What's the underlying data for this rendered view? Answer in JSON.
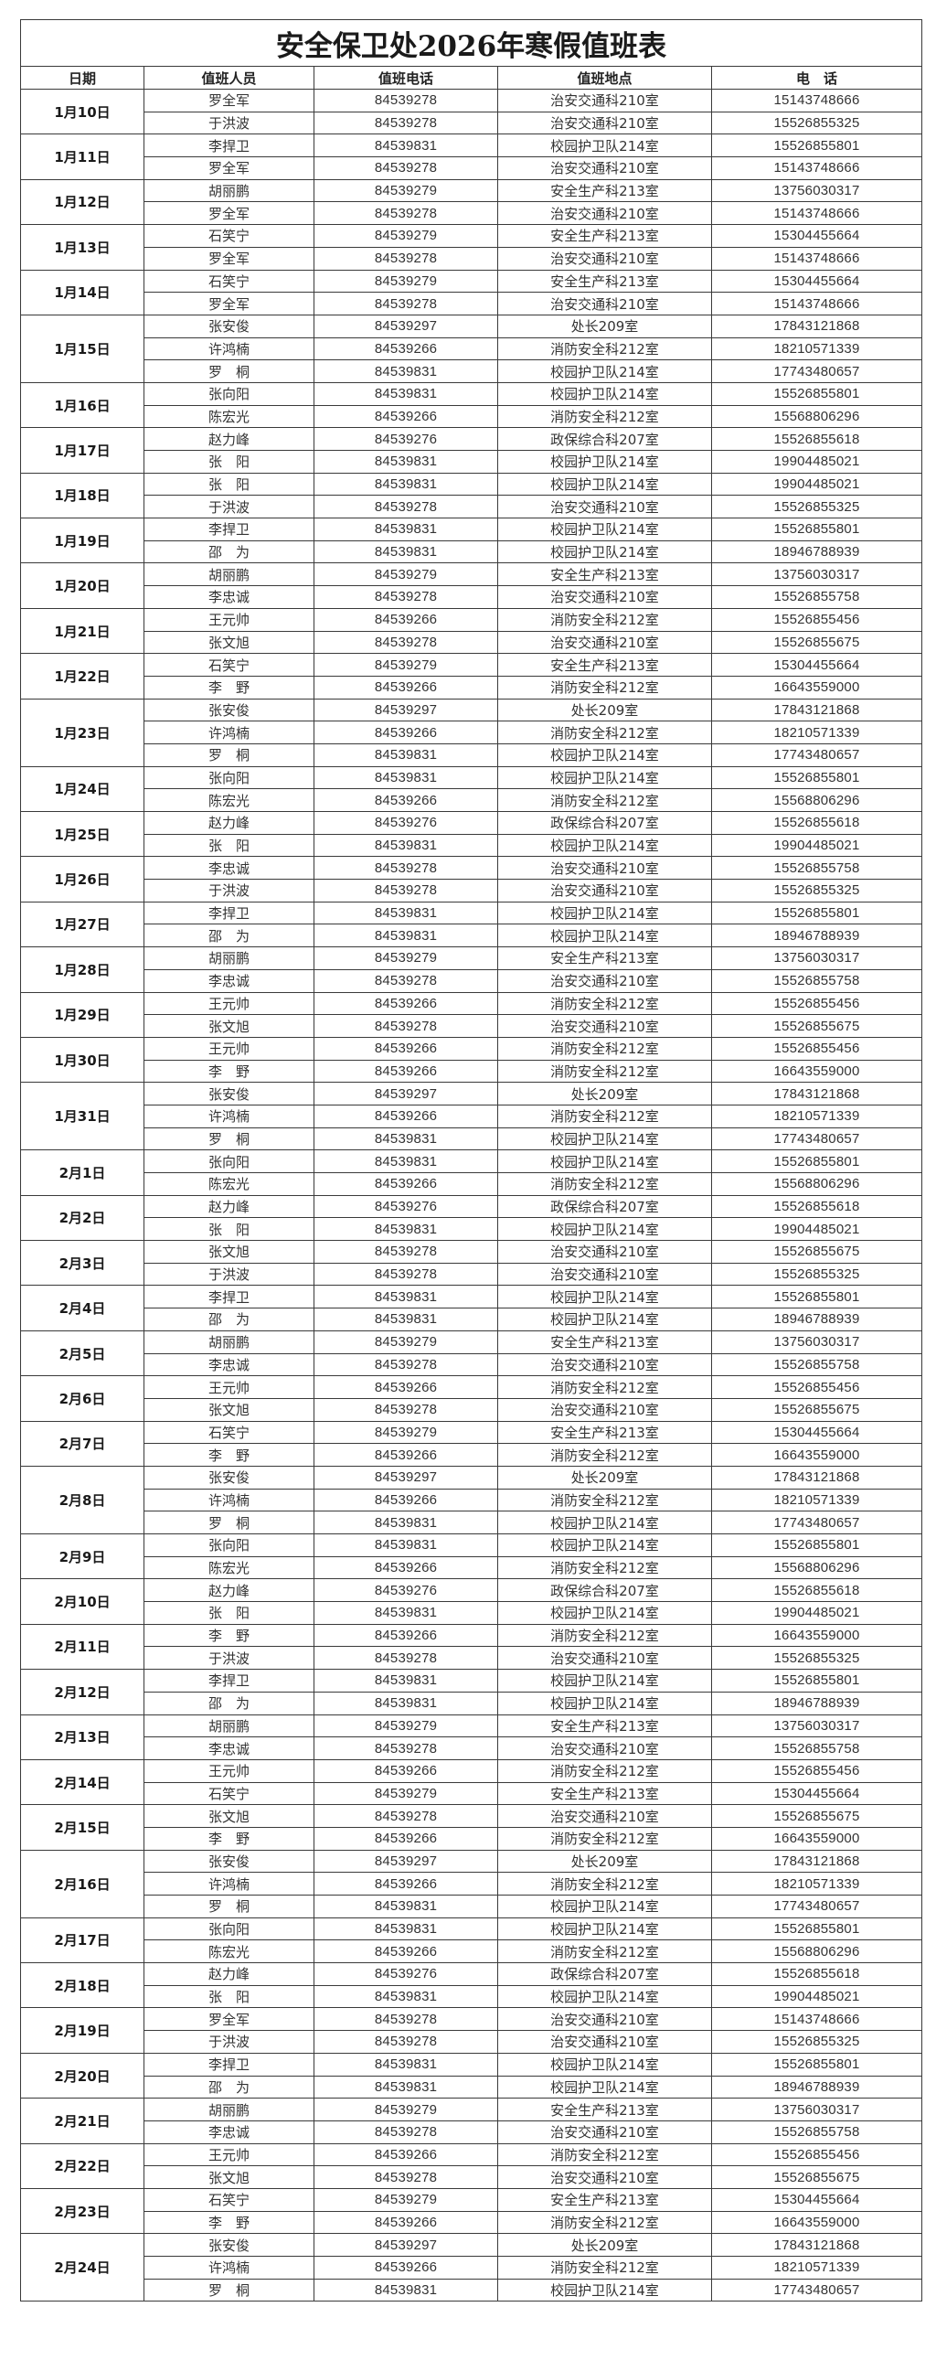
{
  "title": "安全保卫处2026年寒假值班表",
  "headers": [
    "日期",
    "值班人员",
    "值班电话",
    "值班地点",
    "电　话"
  ],
  "schedule": [
    {
      "date": "1月10日",
      "staff": [
        [
          "罗全军",
          "84539278",
          "治安交通科210室",
          "15143748666"
        ],
        [
          "于洪波",
          "84539278",
          "治安交通科210室",
          "15526855325"
        ]
      ]
    },
    {
      "date": "1月11日",
      "staff": [
        [
          "李捍卫",
          "84539831",
          "校园护卫队214室",
          "15526855801"
        ],
        [
          "罗全军",
          "84539278",
          "治安交通科210室",
          "15143748666"
        ]
      ]
    },
    {
      "date": "1月12日",
      "staff": [
        [
          "胡丽鹏",
          "84539279",
          "安全生产科213室",
          "13756030317"
        ],
        [
          "罗全军",
          "84539278",
          "治安交通科210室",
          "15143748666"
        ]
      ]
    },
    {
      "date": "1月13日",
      "staff": [
        [
          "石笑宁",
          "84539279",
          "安全生产科213室",
          "15304455664"
        ],
        [
          "罗全军",
          "84539278",
          "治安交通科210室",
          "15143748666"
        ]
      ]
    },
    {
      "date": "1月14日",
      "staff": [
        [
          "石笑宁",
          "84539279",
          "安全生产科213室",
          "15304455664"
        ],
        [
          "罗全军",
          "84539278",
          "治安交通科210室",
          "15143748666"
        ]
      ]
    },
    {
      "date": "1月15日",
      "staff": [
        [
          "张安俊",
          "84539297",
          "处长209室",
          "17843121868"
        ],
        [
          "许鸿楠",
          "84539266",
          "消防安全科212室",
          "18210571339"
        ],
        [
          "罗　桐",
          "84539831",
          "校园护卫队214室",
          "17743480657"
        ]
      ]
    },
    {
      "date": "1月16日",
      "staff": [
        [
          "张向阳",
          "84539831",
          "校园护卫队214室",
          "15526855801"
        ],
        [
          "陈宏光",
          "84539266",
          "消防安全科212室",
          "15568806296"
        ]
      ]
    },
    {
      "date": "1月17日",
      "staff": [
        [
          "赵力峰",
          "84539276",
          "政保综合科207室",
          "15526855618"
        ],
        [
          "张　阳",
          "84539831",
          "校园护卫队214室",
          "19904485021"
        ]
      ]
    },
    {
      "date": "1月18日",
      "staff": [
        [
          "张　阳",
          "84539831",
          "校园护卫队214室",
          "19904485021"
        ],
        [
          "于洪波",
          "84539278",
          "治安交通科210室",
          "15526855325"
        ]
      ]
    },
    {
      "date": "1月19日",
      "staff": [
        [
          "李捍卫",
          "84539831",
          "校园护卫队214室",
          "15526855801"
        ],
        [
          "邵　为",
          "84539831",
          "校园护卫队214室",
          "18946788939"
        ]
      ]
    },
    {
      "date": "1月20日",
      "staff": [
        [
          "胡丽鹏",
          "84539279",
          "安全生产科213室",
          "13756030317"
        ],
        [
          "李忠诚",
          "84539278",
          "治安交通科210室",
          "15526855758"
        ]
      ]
    },
    {
      "date": "1月21日",
      "staff": [
        [
          "王元帅",
          "84539266",
          "消防安全科212室",
          "15526855456"
        ],
        [
          "张文旭",
          "84539278",
          "治安交通科210室",
          "15526855675"
        ]
      ]
    },
    {
      "date": "1月22日",
      "staff": [
        [
          "石笑宁",
          "84539279",
          "安全生产科213室",
          "15304455664"
        ],
        [
          "李　野",
          "84539266",
          "消防安全科212室",
          "16643559000"
        ]
      ]
    },
    {
      "date": "1月23日",
      "staff": [
        [
          "张安俊",
          "84539297",
          "处长209室",
          "17843121868"
        ],
        [
          "许鸿楠",
          "84539266",
          "消防安全科212室",
          "18210571339"
        ],
        [
          "罗　桐",
          "84539831",
          "校园护卫队214室",
          "17743480657"
        ]
      ]
    },
    {
      "date": "1月24日",
      "staff": [
        [
          "张向阳",
          "84539831",
          "校园护卫队214室",
          "15526855801"
        ],
        [
          "陈宏光",
          "84539266",
          "消防安全科212室",
          "15568806296"
        ]
      ]
    },
    {
      "date": "1月25日",
      "staff": [
        [
          "赵力峰",
          "84539276",
          "政保综合科207室",
          "15526855618"
        ],
        [
          "张　阳",
          "84539831",
          "校园护卫队214室",
          "19904485021"
        ]
      ]
    },
    {
      "date": "1月26日",
      "staff": [
        [
          "李忠诚",
          "84539278",
          "治安交通科210室",
          "15526855758"
        ],
        [
          "于洪波",
          "84539278",
          "治安交通科210室",
          "15526855325"
        ]
      ]
    },
    {
      "date": "1月27日",
      "staff": [
        [
          "李捍卫",
          "84539831",
          "校园护卫队214室",
          "15526855801"
        ],
        [
          "邵　为",
          "84539831",
          "校园护卫队214室",
          "18946788939"
        ]
      ]
    },
    {
      "date": "1月28日",
      "staff": [
        [
          "胡丽鹏",
          "84539279",
          "安全生产科213室",
          "13756030317"
        ],
        [
          "李忠诚",
          "84539278",
          "治安交通科210室",
          "15526855758"
        ]
      ]
    },
    {
      "date": "1月29日",
      "staff": [
        [
          "王元帅",
          "84539266",
          "消防安全科212室",
          "15526855456"
        ],
        [
          "张文旭",
          "84539278",
          "治安交通科210室",
          "15526855675"
        ]
      ]
    },
    {
      "date": "1月30日",
      "staff": [
        [
          "王元帅",
          "84539266",
          "消防安全科212室",
          "15526855456"
        ],
        [
          "李　野",
          "84539266",
          "消防安全科212室",
          "16643559000"
        ]
      ]
    },
    {
      "date": "1月31日",
      "staff": [
        [
          "张安俊",
          "84539297",
          "处长209室",
          "17843121868"
        ],
        [
          "许鸿楠",
          "84539266",
          "消防安全科212室",
          "18210571339"
        ],
        [
          "罗　桐",
          "84539831",
          "校园护卫队214室",
          "17743480657"
        ]
      ]
    },
    {
      "date": "2月1日",
      "staff": [
        [
          "张向阳",
          "84539831",
          "校园护卫队214室",
          "15526855801"
        ],
        [
          "陈宏光",
          "84539266",
          "消防安全科212室",
          "15568806296"
        ]
      ]
    },
    {
      "date": "2月2日",
      "staff": [
        [
          "赵力峰",
          "84539276",
          "政保综合科207室",
          "15526855618"
        ],
        [
          "张　阳",
          "84539831",
          "校园护卫队214室",
          "19904485021"
        ]
      ]
    },
    {
      "date": "2月3日",
      "staff": [
        [
          "张文旭",
          "84539278",
          "治安交通科210室",
          "15526855675"
        ],
        [
          "于洪波",
          "84539278",
          "治安交通科210室",
          "15526855325"
        ]
      ]
    },
    {
      "date": "2月4日",
      "staff": [
        [
          "李捍卫",
          "84539831",
          "校园护卫队214室",
          "15526855801"
        ],
        [
          "邵　为",
          "84539831",
          "校园护卫队214室",
          "18946788939"
        ]
      ]
    },
    {
      "date": "2月5日",
      "staff": [
        [
          "胡丽鹏",
          "84539279",
          "安全生产科213室",
          "13756030317"
        ],
        [
          "李忠诚",
          "84539278",
          "治安交通科210室",
          "15526855758"
        ]
      ]
    },
    {
      "date": "2月6日",
      "staff": [
        [
          "王元帅",
          "84539266",
          "消防安全科212室",
          "15526855456"
        ],
        [
          "张文旭",
          "84539278",
          "治安交通科210室",
          "15526855675"
        ]
      ]
    },
    {
      "date": "2月7日",
      "staff": [
        [
          "石笑宁",
          "84539279",
          "安全生产科213室",
          "15304455664"
        ],
        [
          "李　野",
          "84539266",
          "消防安全科212室",
          "16643559000"
        ]
      ]
    },
    {
      "date": "2月8日",
      "staff": [
        [
          "张安俊",
          "84539297",
          "处长209室",
          "17843121868"
        ],
        [
          "许鸿楠",
          "84539266",
          "消防安全科212室",
          "18210571339"
        ],
        [
          "罗　桐",
          "84539831",
          "校园护卫队214室",
          "17743480657"
        ]
      ]
    },
    {
      "date": "2月9日",
      "staff": [
        [
          "张向阳",
          "84539831",
          "校园护卫队214室",
          "15526855801"
        ],
        [
          "陈宏光",
          "84539266",
          "消防安全科212室",
          "15568806296"
        ]
      ]
    },
    {
      "date": "2月10日",
      "staff": [
        [
          "赵力峰",
          "84539276",
          "政保综合科207室",
          "15526855618"
        ],
        [
          "张　阳",
          "84539831",
          "校园护卫队214室",
          "19904485021"
        ]
      ]
    },
    {
      "date": "2月11日",
      "staff": [
        [
          "李　野",
          "84539266",
          "消防安全科212室",
          "16643559000"
        ],
        [
          "于洪波",
          "84539278",
          "治安交通科210室",
          "15526855325"
        ]
      ]
    },
    {
      "date": "2月12日",
      "staff": [
        [
          "李捍卫",
          "84539831",
          "校园护卫队214室",
          "15526855801"
        ],
        [
          "邵　为",
          "84539831",
          "校园护卫队214室",
          "18946788939"
        ]
      ]
    },
    {
      "date": "2月13日",
      "staff": [
        [
          "胡丽鹏",
          "84539279",
          "安全生产科213室",
          "13756030317"
        ],
        [
          "李忠诚",
          "84539278",
          "治安交通科210室",
          "15526855758"
        ]
      ]
    },
    {
      "date": "2月14日",
      "staff": [
        [
          "王元帅",
          "84539266",
          "消防安全科212室",
          "15526855456"
        ],
        [
          "石笑宁",
          "84539279",
          "安全生产科213室",
          "15304455664"
        ]
      ]
    },
    {
      "date": "2月15日",
      "staff": [
        [
          "张文旭",
          "84539278",
          "治安交通科210室",
          "15526855675"
        ],
        [
          "李　野",
          "84539266",
          "消防安全科212室",
          "16643559000"
        ]
      ]
    },
    {
      "date": "2月16日",
      "staff": [
        [
          "张安俊",
          "84539297",
          "处长209室",
          "17843121868"
        ],
        [
          "许鸿楠",
          "84539266",
          "消防安全科212室",
          "18210571339"
        ],
        [
          "罗　桐",
          "84539831",
          "校园护卫队214室",
          "17743480657"
        ]
      ]
    },
    {
      "date": "2月17日",
      "staff": [
        [
          "张向阳",
          "84539831",
          "校园护卫队214室",
          "15526855801"
        ],
        [
          "陈宏光",
          "84539266",
          "消防安全科212室",
          "15568806296"
        ]
      ]
    },
    {
      "date": "2月18日",
      "staff": [
        [
          "赵力峰",
          "84539276",
          "政保综合科207室",
          "15526855618"
        ],
        [
          "张　阳",
          "84539831",
          "校园护卫队214室",
          "19904485021"
        ]
      ]
    },
    {
      "date": "2月19日",
      "staff": [
        [
          "罗全军",
          "84539278",
          "治安交通科210室",
          "15143748666"
        ],
        [
          "于洪波",
          "84539278",
          "治安交通科210室",
          "15526855325"
        ]
      ]
    },
    {
      "date": "2月20日",
      "staff": [
        [
          "李捍卫",
          "84539831",
          "校园护卫队214室",
          "15526855801"
        ],
        [
          "邵　为",
          "84539831",
          "校园护卫队214室",
          "18946788939"
        ]
      ]
    },
    {
      "date": "2月21日",
      "staff": [
        [
          "胡丽鹏",
          "84539279",
          "安全生产科213室",
          "13756030317"
        ],
        [
          "李忠诚",
          "84539278",
          "治安交通科210室",
          "15526855758"
        ]
      ]
    },
    {
      "date": "2月22日",
      "staff": [
        [
          "王元帅",
          "84539266",
          "消防安全科212室",
          "15526855456"
        ],
        [
          "张文旭",
          "84539278",
          "治安交通科210室",
          "15526855675"
        ]
      ]
    },
    {
      "date": "2月23日",
      "staff": [
        [
          "石笑宁",
          "84539279",
          "安全生产科213室",
          "15304455664"
        ],
        [
          "李　野",
          "84539266",
          "消防安全科212室",
          "16643559000"
        ]
      ]
    },
    {
      "date": "2月24日",
      "staff": [
        [
          "张安俊",
          "84539297",
          "处长209室",
          "17843121868"
        ],
        [
          "许鸿楠",
          "84539266",
          "消防安全科212室",
          "18210571339"
        ],
        [
          "罗　桐",
          "84539831",
          "校园护卫队214室",
          "17743480657"
        ]
      ]
    }
  ]
}
